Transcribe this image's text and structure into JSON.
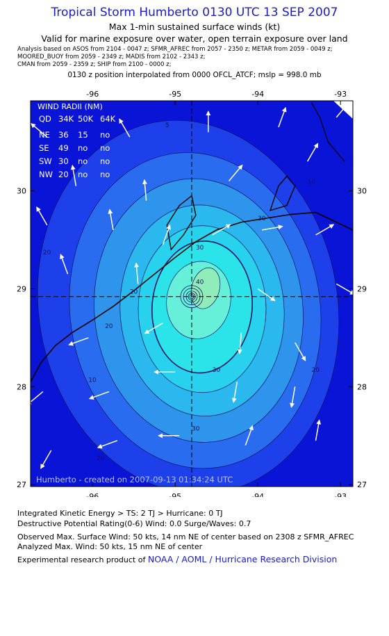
{
  "header": {
    "title": "Tropical Storm Humberto 0130 UTC 13 SEP 2007",
    "subtitle1": "Max 1-min sustained surface winds (kt)",
    "subtitle2": "Valid for marine exposure over water, open terrain exposure over land",
    "analysis_lines": [
      "Analysis based on  ASOS from 2104 - 0047 z;  SFMR_AFREC from 2057 - 2350 z;  METAR from 2059 - 0049 z;",
      "MOORED_BUOY from 2059 - 2349 z;  MADIS from 2102 - 2343 z;",
      "CMAN from 2059 - 2359 z;  SHIP from 2100 - 0000 z;"
    ],
    "position_note": "0130 z position interpolated from 0000 OFCL_ATCF; mslp = 998.0 mb"
  },
  "wind_radii": {
    "title": "WIND RADII (NM)",
    "header": [
      "QD",
      "34K",
      "50K",
      "64K"
    ],
    "rows": [
      [
        "NE",
        "36",
        "15",
        "no"
      ],
      [
        "SE",
        "49",
        "no",
        "no"
      ],
      [
        "SW",
        "30",
        "no",
        "no"
      ],
      [
        "NW",
        "20",
        "no",
        "no"
      ]
    ]
  },
  "map_credit": "Humberto - created on 2007-09-13 01:34:24 UTC",
  "chart_data": {
    "type": "contour",
    "variable": "Max 1-min sustained surface winds (kt)",
    "x_ticks": [
      -96,
      -95,
      -94,
      -93
    ],
    "y_ticks": [
      27,
      28,
      29,
      30
    ],
    "xlim": [
      -96.75,
      -92.85
    ],
    "ylim": [
      26.98,
      30.92
    ],
    "storm_center": {
      "lon": -94.8,
      "lat": 28.92
    },
    "contour_levels": [
      5,
      10,
      15,
      20,
      25,
      30,
      34,
      40,
      45,
      50
    ],
    "contour_labels": [
      "5",
      "10",
      "20",
      "30",
      "30",
      "20",
      "20",
      "20",
      "30",
      "40",
      "10",
      "20",
      "30"
    ],
    "fill_colors": [
      "#0a14d6",
      "#1e40ea",
      "#2a6cf0",
      "#2f94ec",
      "#2ab8ee",
      "#28d2ee",
      "#2ae4ea",
      "#66f0da",
      "#90ecb8"
    ],
    "wind_vectors": [
      {
        "lon": -96.55,
        "lat": 30.55,
        "dir": 310
      },
      {
        "lon": -95.55,
        "lat": 30.55,
        "dir": 330
      },
      {
        "lon": -94.6,
        "lat": 30.6,
        "dir": 0
      },
      {
        "lon": -93.75,
        "lat": 30.65,
        "dir": 20
      },
      {
        "lon": -93.05,
        "lat": 30.75,
        "dir": 40
      },
      {
        "lon": -96.2,
        "lat": 30.05,
        "dir": 350
      },
      {
        "lon": -95.35,
        "lat": 29.9,
        "dir": 355
      },
      {
        "lon": -94.35,
        "lat": 30.1,
        "dir": 40
      },
      {
        "lon": -93.4,
        "lat": 30.3,
        "dir": 30
      },
      {
        "lon": -96.55,
        "lat": 29.65,
        "dir": 330
      },
      {
        "lon": -95.75,
        "lat": 29.6,
        "dir": 350
      },
      {
        "lon": -95.15,
        "lat": 29.45,
        "dir": 20
      },
      {
        "lon": -94.55,
        "lat": 29.55,
        "dir": 60
      },
      {
        "lon": -93.95,
        "lat": 29.6,
        "dir": 80
      },
      {
        "lon": -93.3,
        "lat": 29.55,
        "dir": 60
      },
      {
        "lon": -96.3,
        "lat": 29.15,
        "dir": 340
      },
      {
        "lon": -95.45,
        "lat": 29.05,
        "dir": 355
      },
      {
        "lon": -94.0,
        "lat": 29.0,
        "dir": 125
      },
      {
        "lon": -93.05,
        "lat": 29.05,
        "dir": 120
      },
      {
        "lon": -96.05,
        "lat": 28.5,
        "dir": 250
      },
      {
        "lon": -95.15,
        "lat": 28.65,
        "dir": 240
      },
      {
        "lon": -94.2,
        "lat": 28.55,
        "dir": 185
      },
      {
        "lon": -93.55,
        "lat": 28.45,
        "dir": 150
      },
      {
        "lon": -96.6,
        "lat": 27.95,
        "dir": 230
      },
      {
        "lon": -95.8,
        "lat": 27.95,
        "dir": 250
      },
      {
        "lon": -95.0,
        "lat": 28.15,
        "dir": 270
      },
      {
        "lon": -94.25,
        "lat": 28.05,
        "dir": 190
      },
      {
        "lon": -93.55,
        "lat": 28.0,
        "dir": 190
      },
      {
        "lon": -96.5,
        "lat": 27.35,
        "dir": 210
      },
      {
        "lon": -95.7,
        "lat": 27.45,
        "dir": 250
      },
      {
        "lon": -94.95,
        "lat": 27.5,
        "dir": 270
      },
      {
        "lon": -94.15,
        "lat": 27.4,
        "dir": 20
      },
      {
        "lon": -93.3,
        "lat": 27.45,
        "dir": 10
      }
    ]
  },
  "footer": {
    "ike": "Integrated Kinetic Energy > TS: 2 TJ   > Hurricane: 0 TJ",
    "dpr": "Destructive Potential Rating(0-6)   Wind: 0.0 Surge/Waves: 0.7",
    "observed": "Observed Max. Surface Wind: 50 kts, 14 nm NE of center based on 2308 z SFMR_AFREC",
    "analyzed": "Analyzed Max. Wind: 50 kts, 15 nm NE of center",
    "credit_prefix": "Experimental research product of",
    "credit_link": "NOAA / AOML / Hurricane Research Division"
  }
}
